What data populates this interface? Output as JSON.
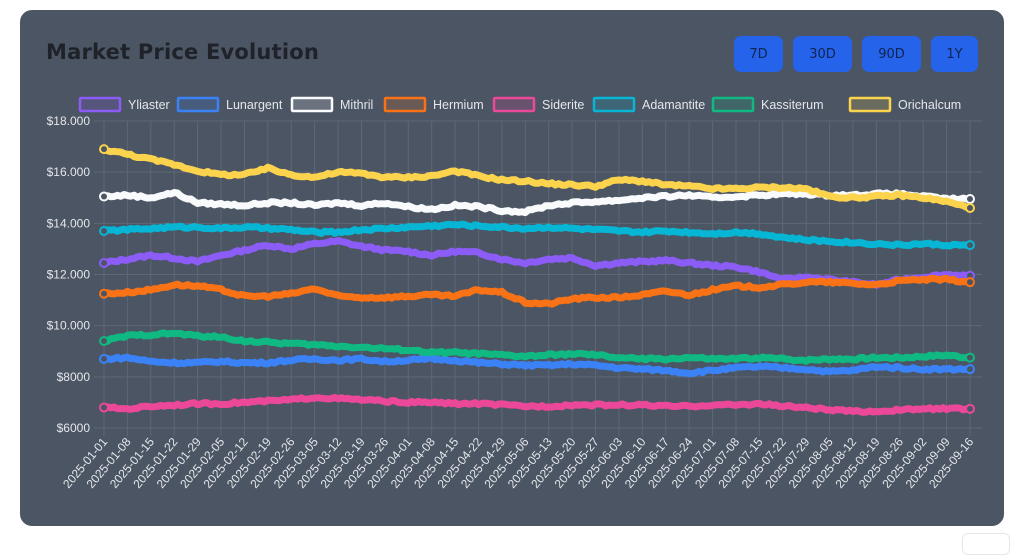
{
  "card": {
    "title": "Market Price Evolution"
  },
  "range_buttons": [
    {
      "label": "7D"
    },
    {
      "label": "30D"
    },
    {
      "label": "90D"
    },
    {
      "label": "1Y"
    }
  ],
  "chart_data": {
    "type": "line",
    "title": "Market Price Evolution",
    "xlabel": "",
    "ylabel": "",
    "ylim": [
      6000,
      18000
    ],
    "yticks": [
      6000,
      8000,
      10000,
      12000,
      14000,
      16000,
      18000
    ],
    "ytick_labels": [
      "$6000",
      "$8000",
      "$10.000",
      "$12.000",
      "$14.000",
      "$16.000",
      "$18.000"
    ],
    "grid": true,
    "legend_position": "top",
    "x": [
      "2025-01-01",
      "2025-01-08",
      "2025-01-15",
      "2025-01-22",
      "2025-01-29",
      "2025-02-05",
      "2025-02-12",
      "2025-02-19",
      "2025-02-26",
      "2025-03-05",
      "2025-03-12",
      "2025-03-19",
      "2025-03-26",
      "2025-04-01",
      "2025-04-08",
      "2025-04-15",
      "2025-04-22",
      "2025-04-29",
      "2025-05-06",
      "2025-05-13",
      "2025-05-20",
      "2025-05-27",
      "2025-06-03",
      "2025-06-10",
      "2025-06-17",
      "2025-06-24",
      "2025-07-01",
      "2025-07-08",
      "2025-07-15",
      "2025-07-22",
      "2025-07-29",
      "2025-08-05",
      "2025-08-12",
      "2025-08-19",
      "2025-08-26",
      "2025-09-02",
      "2025-09-09",
      "2025-09-16"
    ],
    "series": [
      {
        "name": "Yliaster",
        "color": "#8b5cf6",
        "values": [
          12450,
          12600,
          12750,
          12650,
          12500,
          12750,
          12950,
          13150,
          13000,
          13200,
          13300,
          13100,
          12950,
          12900,
          12750,
          12900,
          12850,
          12600,
          12450,
          12600,
          12650,
          12350,
          12450,
          12500,
          12550,
          12450,
          12350,
          12300,
          12100,
          11800,
          11900,
          11800,
          11700,
          11600,
          11800,
          11900,
          12000,
          11950
        ]
      },
      {
        "name": "Lunargent",
        "color": "#3b82f6",
        "values": [
          8700,
          8750,
          8600,
          8550,
          8550,
          8600,
          8550,
          8550,
          8650,
          8700,
          8650,
          8700,
          8600,
          8650,
          8700,
          8650,
          8550,
          8500,
          8450,
          8450,
          8500,
          8450,
          8350,
          8300,
          8250,
          8150,
          8250,
          8350,
          8400,
          8350,
          8300,
          8200,
          8250,
          8400,
          8350,
          8300,
          8300,
          8300
        ]
      },
      {
        "name": "Mithril",
        "color": "#f8fafc",
        "values": [
          15050,
          15100,
          15000,
          15200,
          14800,
          14750,
          14700,
          14800,
          14800,
          14700,
          14800,
          14700,
          14800,
          14650,
          14550,
          14700,
          14650,
          14500,
          14450,
          14700,
          14800,
          14850,
          14900,
          15000,
          15050,
          15100,
          15000,
          15050,
          15100,
          15150,
          15150,
          15100,
          15100,
          15150,
          15150,
          15050,
          14950,
          14950
        ]
      },
      {
        "name": "Hermium",
        "color": "#f97316",
        "values": [
          11250,
          11300,
          11400,
          11600,
          11550,
          11400,
          11150,
          11150,
          11250,
          11450,
          11150,
          11100,
          11100,
          11150,
          11200,
          11150,
          11400,
          11300,
          10900,
          10850,
          11050,
          11100,
          11100,
          11200,
          11350,
          11200,
          11400,
          11550,
          11500,
          11600,
          11700,
          11700,
          11650,
          11600,
          11750,
          11800,
          11800,
          11700
        ]
      },
      {
        "name": "Siderite",
        "color": "#ec4899",
        "values": [
          6800,
          6750,
          6850,
          6900,
          6950,
          6950,
          7000,
          7050,
          7100,
          7200,
          7150,
          7100,
          7050,
          7000,
          7000,
          6950,
          6950,
          6900,
          6850,
          6850,
          6900,
          6900,
          6900,
          6900,
          6850,
          6850,
          6900,
          6900,
          6950,
          6850,
          6800,
          6700,
          6650,
          6650,
          6700,
          6750,
          6750,
          6750
        ]
      },
      {
        "name": "Adamantite",
        "color": "#06b6d4",
        "values": [
          13700,
          13750,
          13800,
          13850,
          13850,
          13800,
          13850,
          13800,
          13750,
          13650,
          13650,
          13750,
          13800,
          13850,
          13900,
          13950,
          13900,
          13850,
          13800,
          13850,
          13800,
          13750,
          13700,
          13650,
          13700,
          13650,
          13600,
          13650,
          13600,
          13450,
          13350,
          13300,
          13250,
          13200,
          13150,
          13200,
          13150,
          13150
        ]
      },
      {
        "name": "Kassiterum",
        "color": "#10b981",
        "values": [
          9400,
          9600,
          9650,
          9700,
          9600,
          9550,
          9400,
          9350,
          9300,
          9250,
          9200,
          9150,
          9100,
          9050,
          8950,
          8950,
          8900,
          8850,
          8800,
          8850,
          8900,
          8850,
          8750,
          8700,
          8700,
          8750,
          8700,
          8700,
          8750,
          8700,
          8650,
          8700,
          8700,
          8750,
          8750,
          8800,
          8850,
          8750
        ]
      },
      {
        "name": "Orichalcum",
        "color": "#fcd34d",
        "values": [
          16900,
          16700,
          16500,
          16300,
          16050,
          15900,
          15900,
          16150,
          15900,
          15800,
          16000,
          15950,
          15800,
          15800,
          15850,
          16050,
          15850,
          15700,
          15650,
          15550,
          15500,
          15450,
          15700,
          15650,
          15500,
          15450,
          15350,
          15350,
          15400,
          15400,
          15350,
          15050,
          15000,
          15050,
          15100,
          15000,
          14850,
          14600
        ]
      }
    ]
  }
}
